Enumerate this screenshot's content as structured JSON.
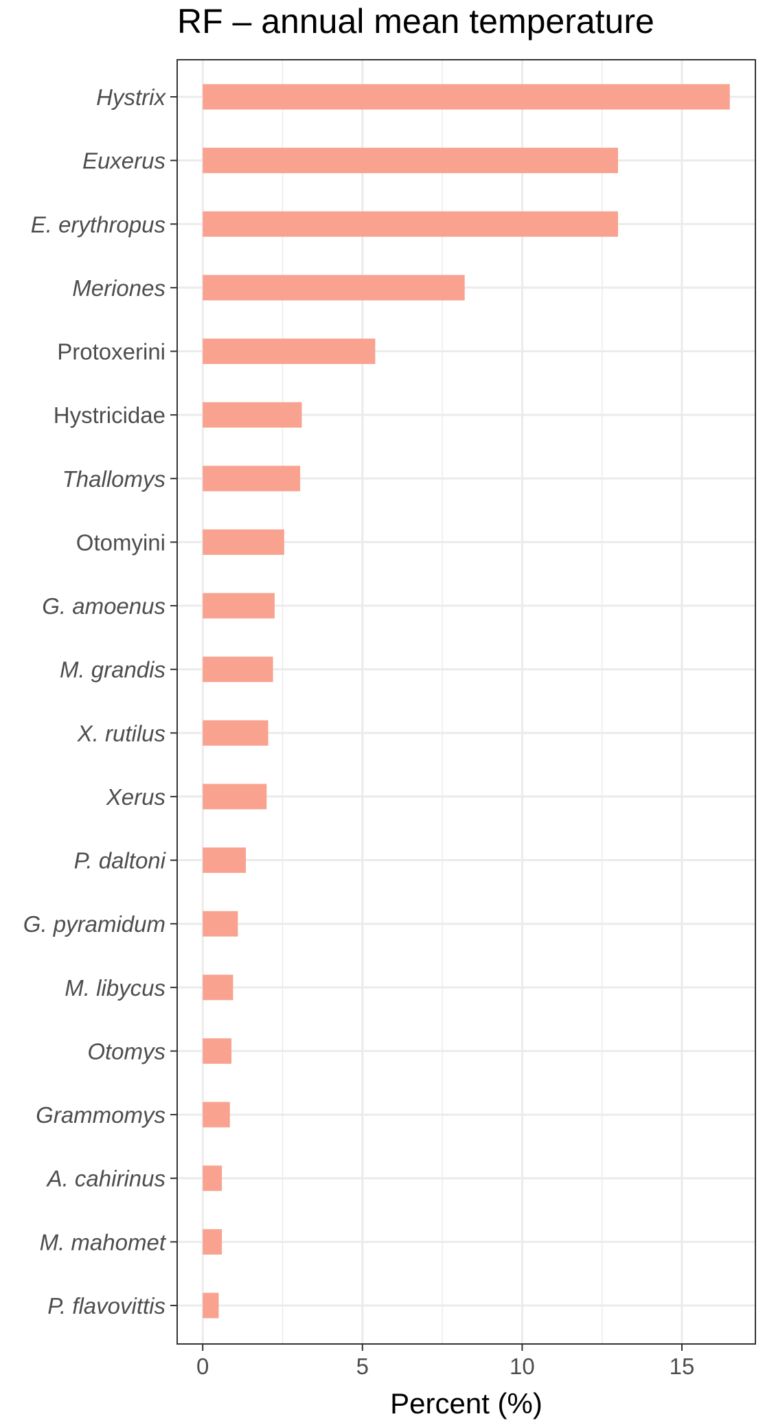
{
  "chart_data": {
    "type": "bar",
    "orientation": "horizontal",
    "title": "RF – annual mean temperature",
    "xlabel": "Percent (%)",
    "ylabel": "",
    "xlim": [
      -0.8,
      17.3
    ],
    "xticks": [
      0,
      5,
      10,
      15
    ],
    "grid": true,
    "legend": "none",
    "bar_color": "#f8a28f",
    "categories": [
      {
        "label": "Hystrix",
        "italic": true
      },
      {
        "label": "Euxerus",
        "italic": true
      },
      {
        "label": "E. erythropus",
        "italic": true
      },
      {
        "label": "Meriones",
        "italic": true
      },
      {
        "label": "Protoxerini",
        "italic": false
      },
      {
        "label": "Hystricidae",
        "italic": false
      },
      {
        "label": "Thallomys",
        "italic": true
      },
      {
        "label": "Otomyini",
        "italic": false
      },
      {
        "label": "G. amoenus",
        "italic": true
      },
      {
        "label": "M. grandis",
        "italic": true
      },
      {
        "label": "X. rutilus",
        "italic": true
      },
      {
        "label": "Xerus",
        "italic": true
      },
      {
        "label": "P. daltoni",
        "italic": true
      },
      {
        "label": "G. pyramidum",
        "italic": true
      },
      {
        "label": "M. libycus",
        "italic": true
      },
      {
        "label": "Otomys",
        "italic": true
      },
      {
        "label": "Grammomys",
        "italic": true
      },
      {
        "label": "A. cahirinus",
        "italic": true
      },
      {
        "label": "M. mahomet",
        "italic": true
      },
      {
        "label": "P. flavovittis",
        "italic": true
      }
    ],
    "values": [
      16.5,
      13.0,
      13.0,
      8.2,
      5.4,
      3.1,
      3.05,
      2.55,
      2.25,
      2.2,
      2.05,
      2.0,
      1.35,
      1.1,
      0.95,
      0.9,
      0.85,
      0.6,
      0.6,
      0.5
    ]
  }
}
